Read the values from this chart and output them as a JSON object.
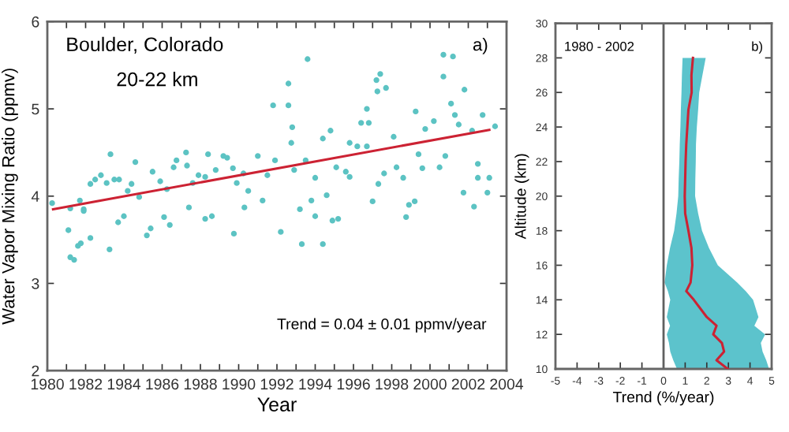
{
  "chart_data": [
    {
      "type": "scatter",
      "xlabel": "Year",
      "ylabel": "Water Vapor Mixing Ratio (ppmv)",
      "annotations": [
        "Boulder, Colorado",
        "20-22 km",
        "a)",
        "Trend = 0.04 ± 0.01 ppmv/year"
      ],
      "xlim": [
        1980,
        2004
      ],
      "ylim": [
        2,
        6
      ],
      "xticks": [
        1980,
        {
          "value": 1981,
          "label": null
        },
        1982,
        {
          "value": 1983,
          "label": null
        },
        1984,
        {
          "value": 1985,
          "label": null
        },
        1986,
        {
          "value": 1987,
          "label": null
        },
        1988,
        {
          "value": 1989,
          "label": null
        },
        1990,
        {
          "value": 1991,
          "label": null
        },
        1992,
        {
          "value": 1993,
          "label": null
        },
        1994,
        {
          "value": 1995,
          "label": null
        },
        1996,
        {
          "value": 1997,
          "label": null
        },
        1998,
        {
          "value": 1999,
          "label": null
        },
        2000,
        {
          "value": 2001,
          "label": null
        },
        2002,
        {
          "value": 2003,
          "label": null
        },
        2004
      ],
      "yticks": [
        2,
        3,
        4,
        5,
        6
      ],
      "marker": "circle",
      "grid": false,
      "series": [
        {
          "type": "scatter",
          "color": "#5cc3c3",
          "x": [
            1980.25,
            1981.2,
            1981.7,
            1981.9,
            1982.25,
            1982.5,
            1982.8,
            1983.1,
            1983.3,
            1983.5,
            1983.75,
            1984.2,
            1984.4,
            1984.6,
            1984.8,
            1985.5,
            1985.9,
            1986.25,
            1986.6,
            1986.75,
            1987.25,
            1987.3,
            1987.6,
            1987.9,
            1988.25,
            1988.4,
            1988.8,
            1989.2,
            1989.4,
            1989.7,
            1989.9,
            1990.25,
            1990.5,
            1991.0,
            1991.25,
            1991.5,
            1991.8,
            1991.9,
            1992.6,
            1992.6,
            1992.8,
            1992.75,
            1992.9,
            1993.6,
            1993.5,
            1993.8,
            1994.0,
            1994.4,
            1994.8,
            1995.1,
            1995.6,
            1995.8,
            1996.7,
            1996.8,
            1997.25,
            1997.4,
            1997.6,
            1997.0,
            1994.6,
            1995.2,
            1995.8,
            1996.2,
            1996.4,
            1996.7,
            1997.2,
            1997.3,
            1997.7,
            1998.1,
            1998.25,
            1998.6,
            1998.75,
            1998.9,
            1999.2,
            1999.25,
            1999.4,
            1999.6,
            1999.75,
            2000.2,
            2000.5,
            2000.7,
            2000.7,
            2000.8,
            2001.2,
            2001.1,
            2001.3,
            2001.5,
            2001.75,
            2001.8,
            2002.2,
            2002.3,
            2002.5,
            2002.5,
            2002.75,
            2003.0,
            2003.1,
            2003.4,
            1981.1,
            1981.2,
            1981.4,
            1981.6,
            1981.75,
            1982.25,
            1981.9,
            1983.25,
            1983.7,
            1984.0,
            1985.2,
            1985.4,
            1986.1,
            1986.4,
            1987.4,
            1988.25,
            1988.6,
            1989.75,
            1990.3,
            1992.2,
            1993.2,
            1993.3,
            1994.0,
            1994.4,
            1994.9
          ],
          "values": [
            3.92,
            3.86,
            3.95,
            3.85,
            4.14,
            4.19,
            4.24,
            4.15,
            4.48,
            4.19,
            4.19,
            4.06,
            4.14,
            4.39,
            3.99,
            4.28,
            4.17,
            4.08,
            4.33,
            4.41,
            4.5,
            4.35,
            4.15,
            4.24,
            4.22,
            4.48,
            4.3,
            4.46,
            4.44,
            4.32,
            4.15,
            4.26,
            4.06,
            4.46,
            3.95,
            4.24,
            5.04,
            4.41,
            5.29,
            5.04,
            4.79,
            4.61,
            4.3,
            5.57,
            4.41,
            3.95,
            4.21,
            4.66,
            4.75,
            4.33,
            4.28,
            4.22,
            5.0,
            4.84,
            5.2,
            5.4,
            4.26,
            3.94,
            4.01,
            3.74,
            4.61,
            4.57,
            4.84,
            4.57,
            5.33,
            4.14,
            5.24,
            4.68,
            4.33,
            4.21,
            3.76,
            3.9,
            3.94,
            4.97,
            4.48,
            4.32,
            4.77,
            4.86,
            4.33,
            5.62,
            5.37,
            4.46,
            5.6,
            5.06,
            4.93,
            4.82,
            4.04,
            5.22,
            4.75,
            3.88,
            4.37,
            4.21,
            4.93,
            4.04,
            4.21,
            4.8,
            3.61,
            3.3,
            3.27,
            3.43,
            3.46,
            3.52,
            3.83,
            3.39,
            3.7,
            3.77,
            3.55,
            3.63,
            3.76,
            3.67,
            3.87,
            3.74,
            3.77,
            3.57,
            3.87,
            3.59,
            3.85,
            3.45,
            3.77,
            3.45,
            3.72
          ]
        },
        {
          "type": "line",
          "color": "#cc2233",
          "x": [
            1980.3,
            2003.1
          ],
          "values": [
            3.85,
            4.76
          ],
          "marker": "none"
        }
      ]
    },
    {
      "type": "line",
      "orientation": "horizontal",
      "xlabel": "Trend (%/year)",
      "ylabel": "Altitude (km)",
      "annotations": [
        "1980 - 2002",
        "b)"
      ],
      "xlim": [
        -5,
        5
      ],
      "ylim": [
        10,
        30
      ],
      "xticks": [
        -5,
        -4,
        -3,
        -2,
        -1,
        0,
        1,
        2,
        3,
        4,
        5
      ],
      "yticks": [
        10,
        12,
        14,
        16,
        18,
        20,
        22,
        24,
        26,
        28,
        30
      ],
      "grid": false,
      "marker": "none",
      "line_style": "solid",
      "ref_lines": [
        {
          "axis": "x",
          "value": 0,
          "color": "#606060"
        }
      ],
      "series": [
        {
          "type": "line",
          "color": "#cc2233",
          "x": [
            28,
            27,
            26,
            25,
            24,
            23,
            22,
            21,
            20,
            19,
            18,
            17,
            16,
            15,
            14.5,
            14,
            13,
            12.5,
            12,
            11.5,
            11,
            10.5,
            10
          ],
          "values": [
            1.36,
            1.29,
            1.3,
            1.15,
            1.1,
            1.05,
            1.02,
            1.0,
            0.98,
            1.0,
            1.15,
            1.29,
            1.33,
            1.25,
            1.05,
            1.4,
            2.0,
            2.45,
            2.3,
            2.7,
            2.8,
            2.45,
            2.97
          ],
          "lower": [
            0.88,
            0.85,
            0.83,
            0.8,
            0.78,
            0.75,
            0.73,
            0.7,
            0.68,
            0.6,
            0.49,
            0.3,
            0.15,
            0.05,
            0.2,
            0.31,
            0.15,
            0.3,
            0.15,
            0.25,
            0.31,
            0.45,
            0.62
          ],
          "upper": [
            1.95,
            1.8,
            1.65,
            1.6,
            1.54,
            1.5,
            1.49,
            1.47,
            1.46,
            1.6,
            1.78,
            2.1,
            2.51,
            3.41,
            3.8,
            4.14,
            4.39,
            4.2,
            4.7,
            4.5,
            4.58,
            4.75,
            4.88
          ]
        }
      ]
    }
  ]
}
